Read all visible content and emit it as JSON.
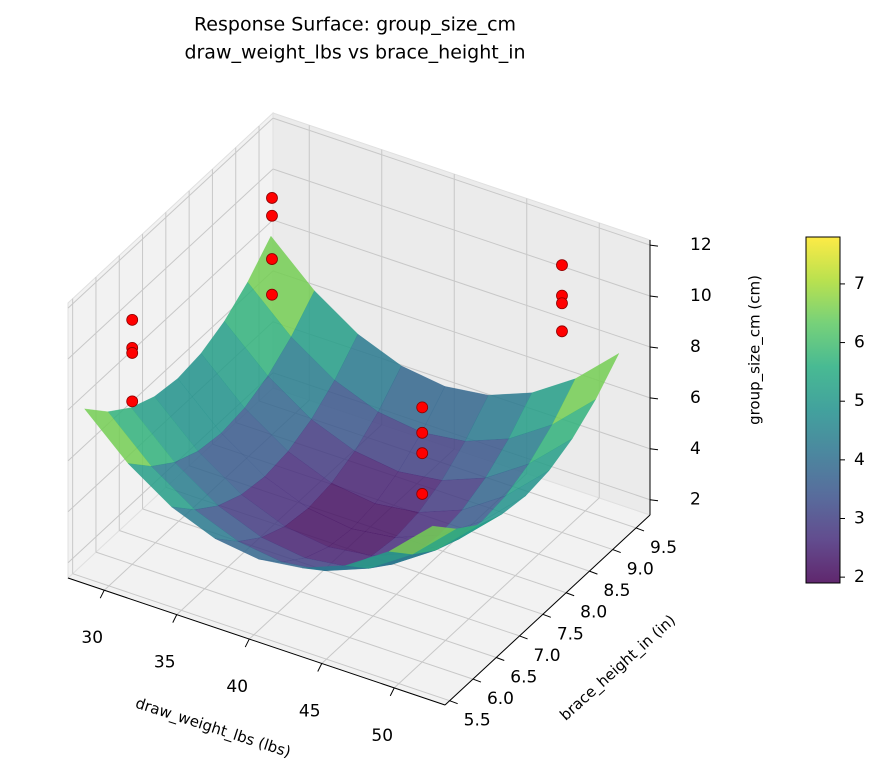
{
  "chart_data": {
    "type": "surface",
    "title": "Response Surface: group_size_cm",
    "subtitle": "draw_weight_lbs vs brace_height_in",
    "x_label": "draw_weight_lbs (lbs)",
    "y_label": "brace_height_in (in)",
    "z_label": "group_size_cm (cm)",
    "xlim": [
      27.5,
      53.5
    ],
    "ylim": [
      5.4,
      9.8
    ],
    "zlim": [
      1.4,
      12.2
    ],
    "xticks": [
      30,
      35,
      40,
      45,
      50
    ],
    "yticks": [
      5.5,
      {
        "value": 6,
        "label": "6.0"
      },
      6.5,
      {
        "value": 7,
        "label": "7.0"
      },
      7.5,
      {
        "value": 8,
        "label": "8.0"
      },
      8.5,
      {
        "value": 9,
        "label": "9.0"
      },
      9.5
    ],
    "zticks": [
      2,
      4,
      6,
      8,
      10,
      12
    ],
    "grid": true,
    "surface": {
      "x": [
        28,
        31,
        34,
        37,
        40,
        43,
        46,
        49,
        52
      ],
      "y": [
        5.6,
        6.1,
        6.6,
        7.1,
        7.6,
        8.1,
        8.6,
        9.1,
        9.6
      ],
      "z": [
        [
          7.8,
          6.23,
          5.1,
          4.43,
          4.2,
          4.43,
          5.1,
          6.23,
          7.8
        ],
        [
          6.84,
          5.27,
          4.14,
          3.47,
          3.24,
          3.47,
          4.14,
          5.27,
          6.84
        ],
        [
          6.15,
          4.58,
          3.45,
          2.78,
          2.55,
          2.78,
          3.45,
          4.58,
          6.15
        ],
        [
          5.74,
          4.17,
          3.04,
          2.37,
          2.14,
          2.37,
          3.04,
          4.17,
          5.74
        ],
        [
          5.6,
          4.03,
          2.9,
          2.23,
          2.0,
          2.23,
          2.9,
          4.03,
          5.6
        ],
        [
          5.74,
          4.17,
          3.04,
          2.37,
          2.14,
          2.37,
          3.04,
          4.17,
          5.74
        ],
        [
          6.15,
          4.58,
          3.45,
          2.78,
          2.55,
          2.78,
          3.45,
          4.58,
          6.15
        ],
        [
          6.84,
          5.27,
          4.14,
          3.47,
          3.24,
          3.47,
          4.14,
          5.27,
          6.84
        ],
        [
          7.8,
          6.23,
          5.1,
          4.43,
          4.2,
          4.43,
          5.1,
          6.23,
          7.8
        ]
      ],
      "alpha": 0.85,
      "colormap": [
        "#440154",
        "#472d7b",
        "#3b528b",
        "#2c728e",
        "#21918c",
        "#28ae80",
        "#5ec962",
        "#addc30",
        "#fde725"
      ]
    },
    "points": {
      "color": "#ff0000",
      "x": [
        30,
        30,
        30,
        30,
        30,
        30,
        30,
        30,
        50,
        50,
        50,
        50,
        50,
        50,
        50,
        50
      ],
      "y": [
        6,
        6,
        6,
        6,
        9,
        9,
        9,
        9,
        6,
        6,
        6,
        6,
        9,
        9,
        9,
        9
      ],
      "z": [
        11.0,
        9.9,
        9.7,
        7.8,
        10.7,
        10.0,
        8.3,
        6.9,
        11.4,
        10.4,
        9.6,
        8.0,
        11.9,
        10.7,
        10.4,
        9.3
      ]
    },
    "clim": [
      1.9,
      7.8
    ],
    "cticks": [
      2,
      3,
      4,
      5,
      6,
      7
    ]
  }
}
